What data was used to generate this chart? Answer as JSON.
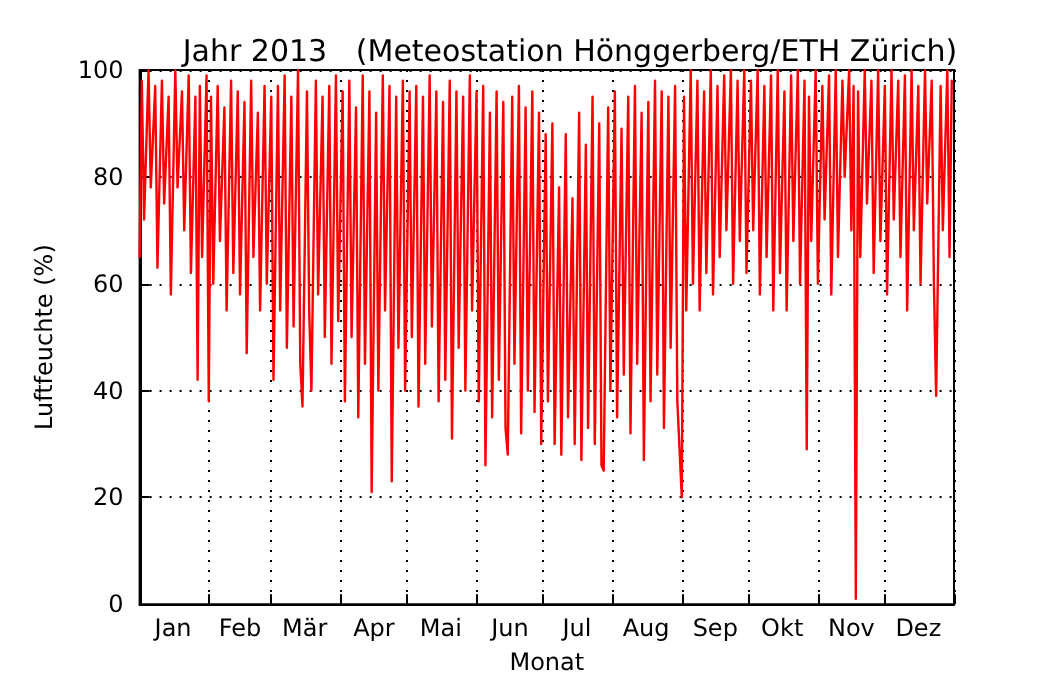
{
  "chart_data": {
    "type": "line",
    "title": "Jahr 2013   (Meteostation Hönggerberg/ETH Zürich)",
    "xlabel": "Monat",
    "ylabel": "Luftfeuchte (%)",
    "xlim": [
      "2013-01-01",
      "2014-01-01"
    ],
    "ylim": [
      0,
      100
    ],
    "yticks": [
      0,
      20,
      40,
      60,
      80,
      100
    ],
    "xticks": [
      {
        "value": "2013-01-01",
        "label": null
      },
      {
        "value": "2013-01-16",
        "label": "Jan"
      },
      {
        "value": "2013-02-01",
        "label": null
      },
      {
        "value": "2013-02-15",
        "label": "Feb"
      },
      {
        "value": "2013-03-01",
        "label": null
      },
      {
        "value": "2013-03-16",
        "label": "Mär"
      },
      {
        "value": "2013-04-01",
        "label": null
      },
      {
        "value": "2013-04-16",
        "label": "Apr"
      },
      {
        "value": "2013-05-01",
        "label": null
      },
      {
        "value": "2013-05-16",
        "label": "Mai"
      },
      {
        "value": "2013-06-01",
        "label": null
      },
      {
        "value": "2013-06-16",
        "label": "Jun"
      },
      {
        "value": "2013-07-01",
        "label": null
      },
      {
        "value": "2013-07-16",
        "label": "Jul"
      },
      {
        "value": "2013-08-01",
        "label": null
      },
      {
        "value": "2013-08-16",
        "label": "Aug"
      },
      {
        "value": "2013-09-01",
        "label": null
      },
      {
        "value": "2013-09-16",
        "label": "Sep"
      },
      {
        "value": "2013-10-01",
        "label": null
      },
      {
        "value": "2013-10-16",
        "label": "Okt"
      },
      {
        "value": "2013-11-01",
        "label": null
      },
      {
        "value": "2013-11-16",
        "label": "Nov"
      },
      {
        "value": "2013-12-01",
        "label": null
      },
      {
        "value": "2013-12-16",
        "label": "Dez"
      },
      {
        "value": "2014-01-01",
        "label": null
      }
    ],
    "grid": true,
    "marker": "none",
    "line_style": "solid",
    "x": [
      "2013-01-01",
      "2013-01-02",
      "2013-01-03",
      "2013-01-05",
      "2013-01-06",
      "2013-01-08",
      "2013-01-09",
      "2013-01-11",
      "2013-01-12",
      "2013-01-14",
      "2013-01-15",
      "2013-01-17",
      "2013-01-18",
      "2013-01-20",
      "2013-01-21",
      "2013-01-23",
      "2013-01-24",
      "2013-01-26",
      "2013-01-27",
      "2013-01-28",
      "2013-01-29",
      "2013-01-31",
      "2013-02-01",
      "2013-02-02",
      "2013-02-03",
      "2013-02-05",
      "2013-02-06",
      "2013-02-08",
      "2013-02-09",
      "2013-02-11",
      "2013-02-12",
      "2013-02-14",
      "2013-02-15",
      "2013-02-17",
      "2013-02-18",
      "2013-02-20",
      "2013-02-21",
      "2013-02-23",
      "2013-02-24",
      "2013-02-26",
      "2013-02-27",
      "2013-03-01",
      "2013-03-02",
      "2013-03-04",
      "2013-03-05",
      "2013-03-07",
      "2013-03-08",
      "2013-03-10",
      "2013-03-11",
      "2013-03-13",
      "2013-03-14",
      "2013-03-15",
      "2013-03-17",
      "2013-03-18",
      "2013-03-19",
      "2013-03-21",
      "2013-03-22",
      "2013-03-24",
      "2013-03-25",
      "2013-03-27",
      "2013-03-28",
      "2013-03-30",
      "2013-03-31",
      "2013-04-02",
      "2013-04-03",
      "2013-04-05",
      "2013-04-06",
      "2013-04-08",
      "2013-04-09",
      "2013-04-11",
      "2013-04-12",
      "2013-04-14",
      "2013-04-15",
      "2013-04-17",
      "2013-04-18",
      "2013-04-20",
      "2013-04-21",
      "2013-04-23",
      "2013-04-24",
      "2013-04-26",
      "2013-04-27",
      "2013-04-29",
      "2013-04-30",
      "2013-05-02",
      "2013-05-03",
      "2013-05-05",
      "2013-05-06",
      "2013-05-08",
      "2013-05-09",
      "2013-05-11",
      "2013-05-12",
      "2013-05-14",
      "2013-05-15",
      "2013-05-17",
      "2013-05-18",
      "2013-05-20",
      "2013-05-21",
      "2013-05-23",
      "2013-05-24",
      "2013-05-26",
      "2013-05-27",
      "2013-05-29",
      "2013-05-30",
      "2013-06-01",
      "2013-06-02",
      "2013-06-04",
      "2013-06-05",
      "2013-06-07",
      "2013-06-08",
      "2013-06-10",
      "2013-06-11",
      "2013-06-13",
      "2013-06-14",
      "2013-06-15",
      "2013-06-17",
      "2013-06-18",
      "2013-06-20",
      "2013-06-21",
      "2013-06-23",
      "2013-06-24",
      "2013-06-26",
      "2013-06-27",
      "2013-06-29",
      "2013-06-30",
      "2013-07-02",
      "2013-07-03",
      "2013-07-05",
      "2013-07-06",
      "2013-07-08",
      "2013-07-09",
      "2013-07-11",
      "2013-07-12",
      "2013-07-14",
      "2013-07-15",
      "2013-07-17",
      "2013-07-18",
      "2013-07-20",
      "2013-07-21",
      "2013-07-23",
      "2013-07-24",
      "2013-07-26",
      "2013-07-27",
      "2013-07-28",
      "2013-07-30",
      "2013-07-31",
      "2013-08-02",
      "2013-08-03",
      "2013-08-05",
      "2013-08-06",
      "2013-08-08",
      "2013-08-09",
      "2013-08-11",
      "2013-08-12",
      "2013-08-14",
      "2013-08-15",
      "2013-08-17",
      "2013-08-18",
      "2013-08-20",
      "2013-08-21",
      "2013-08-23",
      "2013-08-24",
      "2013-08-26",
      "2013-08-27",
      "2013-08-29",
      "2013-08-30",
      "2013-09-01",
      "2013-09-02",
      "2013-09-03",
      "2013-09-05",
      "2013-09-06",
      "2013-09-08",
      "2013-09-09",
      "2013-09-11",
      "2013-09-12",
      "2013-09-14",
      "2013-09-15",
      "2013-09-17",
      "2013-09-18",
      "2013-09-20",
      "2013-09-21",
      "2013-09-23",
      "2013-09-24",
      "2013-09-26",
      "2013-09-27",
      "2013-09-29",
      "2013-09-30",
      "2013-10-02",
      "2013-10-03",
      "2013-10-05",
      "2013-10-06",
      "2013-10-08",
      "2013-10-09",
      "2013-10-11",
      "2013-10-12",
      "2013-10-14",
      "2013-10-15",
      "2013-10-17",
      "2013-10-18",
      "2013-10-20",
      "2013-10-21",
      "2013-10-23",
      "2013-10-24",
      "2013-10-26",
      "2013-10-27",
      "2013-10-28",
      "2013-10-29",
      "2013-10-31",
      "2013-11-01",
      "2013-11-03",
      "2013-11-04",
      "2013-11-06",
      "2013-11-07",
      "2013-11-09",
      "2013-11-10",
      "2013-11-12",
      "2013-11-13",
      "2013-11-15",
      "2013-11-16",
      "2013-11-17",
      "2013-11-18",
      "2013-11-19",
      "2013-11-20",
      "2013-11-22",
      "2013-11-23",
      "2013-11-25",
      "2013-11-26",
      "2013-11-28",
      "2013-11-29",
      "2013-12-01",
      "2013-12-02",
      "2013-12-04",
      "2013-12-05",
      "2013-12-07",
      "2013-12-08",
      "2013-12-10",
      "2013-12-11",
      "2013-12-13",
      "2013-12-14",
      "2013-12-16",
      "2013-12-17",
      "2013-12-19",
      "2013-12-20",
      "2013-12-22",
      "2013-12-23",
      "2013-12-24",
      "2013-12-26",
      "2013-12-27",
      "2013-12-29",
      "2013-12-30",
      "2013-12-31"
    ],
    "series": [
      {
        "color": "#ff0000",
        "values": [
          65,
          98,
          72,
          100,
          78,
          97,
          63,
          98,
          75,
          95,
          58,
          100,
          78,
          96,
          70,
          99,
          62,
          95,
          42,
          97,
          65,
          99,
          38,
          95,
          60,
          97,
          68,
          93,
          55,
          98,
          62,
          96,
          58,
          94,
          47,
          98,
          65,
          92,
          55,
          97,
          60,
          95,
          42,
          97,
          55,
          99,
          48,
          95,
          52,
          100,
          45,
          37,
          96,
          55,
          40,
          98,
          58,
          95,
          50,
          97,
          45,
          99,
          53,
          96,
          38,
          98,
          50,
          93,
          35,
          99,
          45,
          96,
          21,
          92,
          40,
          99,
          55,
          97,
          23,
          95,
          48,
          98,
          40,
          96,
          50,
          97,
          37,
          95,
          45,
          99,
          52,
          96,
          38,
          94,
          42,
          98,
          31,
          96,
          48,
          95,
          40,
          99,
          55,
          96,
          38,
          97,
          26,
          92,
          35,
          96,
          42,
          94,
          33,
          28,
          95,
          45,
          97,
          32,
          93,
          40,
          96,
          36,
          92,
          30,
          88,
          38,
          90,
          30,
          78,
          28,
          88,
          35,
          76,
          30,
          92,
          27,
          86,
          33,
          95,
          30,
          90,
          26,
          25,
          93,
          40,
          96,
          35,
          89,
          43,
          95,
          32,
          97,
          45,
          92,
          27,
          94,
          38,
          98,
          43,
          96,
          33,
          95,
          48,
          97,
          38,
          20,
          95,
          55,
          100,
          60,
          98,
          55,
          96,
          62,
          100,
          58,
          97,
          65,
          99,
          70,
          100,
          60,
          98,
          68,
          100,
          62,
          98,
          70,
          100,
          58,
          97,
          65,
          99,
          55,
          100,
          62,
          96,
          55,
          99,
          68,
          100,
          60,
          98,
          29,
          95,
          68,
          100,
          60,
          97,
          72,
          99,
          58,
          100,
          65,
          98,
          80,
          100,
          70,
          97,
          1,
          96,
          65,
          100,
          75,
          98,
          62,
          100,
          68,
          97,
          58,
          100,
          72,
          98,
          65,
          99,
          55,
          100,
          70,
          97,
          60,
          100,
          75,
          98,
          60,
          39,
          97,
          70,
          100,
          65,
          98
        ]
      }
    ]
  }
}
